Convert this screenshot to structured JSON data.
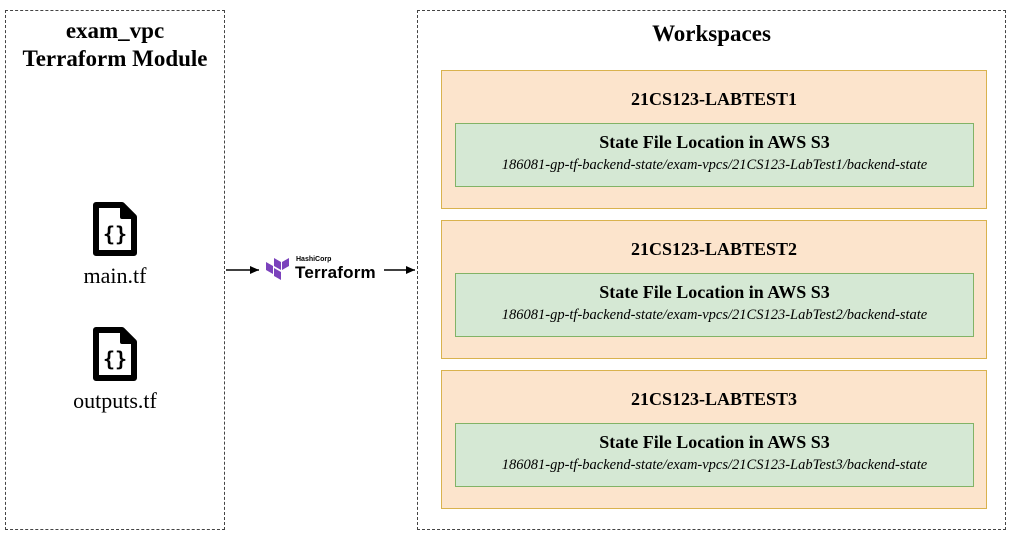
{
  "module": {
    "title_line1": "exam_vpc",
    "title_line2": "Terraform Module",
    "files": [
      {
        "label": "main.tf",
        "icon": "curly-braces-file-icon"
      },
      {
        "label": "outputs.tf",
        "icon": "curly-braces-file-icon"
      }
    ]
  },
  "connector": {
    "logo_small": "HashiCorp",
    "logo_text": "Terraform",
    "logo_color": "#7b42bc"
  },
  "workspaces": {
    "title": "Workspaces",
    "items": [
      {
        "name": "21CS123-LABTEST1",
        "state_heading": "State File Location in AWS S3",
        "state_path": "186081-gp-tf-backend-state/exam-vpcs/21CS123-LabTest1/backend-state"
      },
      {
        "name": "21CS123-LABTEST2",
        "state_heading": "State File Location in AWS S3",
        "state_path": "186081-gp-tf-backend-state/exam-vpcs/21CS123-LabTest2/backend-state"
      },
      {
        "name": "21CS123-LABTEST3",
        "state_heading": "State File Location in AWS S3",
        "state_path": "186081-gp-tf-backend-state/exam-vpcs/21CS123-LabTest3/backend-state"
      }
    ]
  },
  "colors": {
    "workspace_fill": "#fce4cc",
    "workspace_border": "#d9b24e",
    "state_fill": "#d5e8d4",
    "state_border": "#82b366"
  }
}
